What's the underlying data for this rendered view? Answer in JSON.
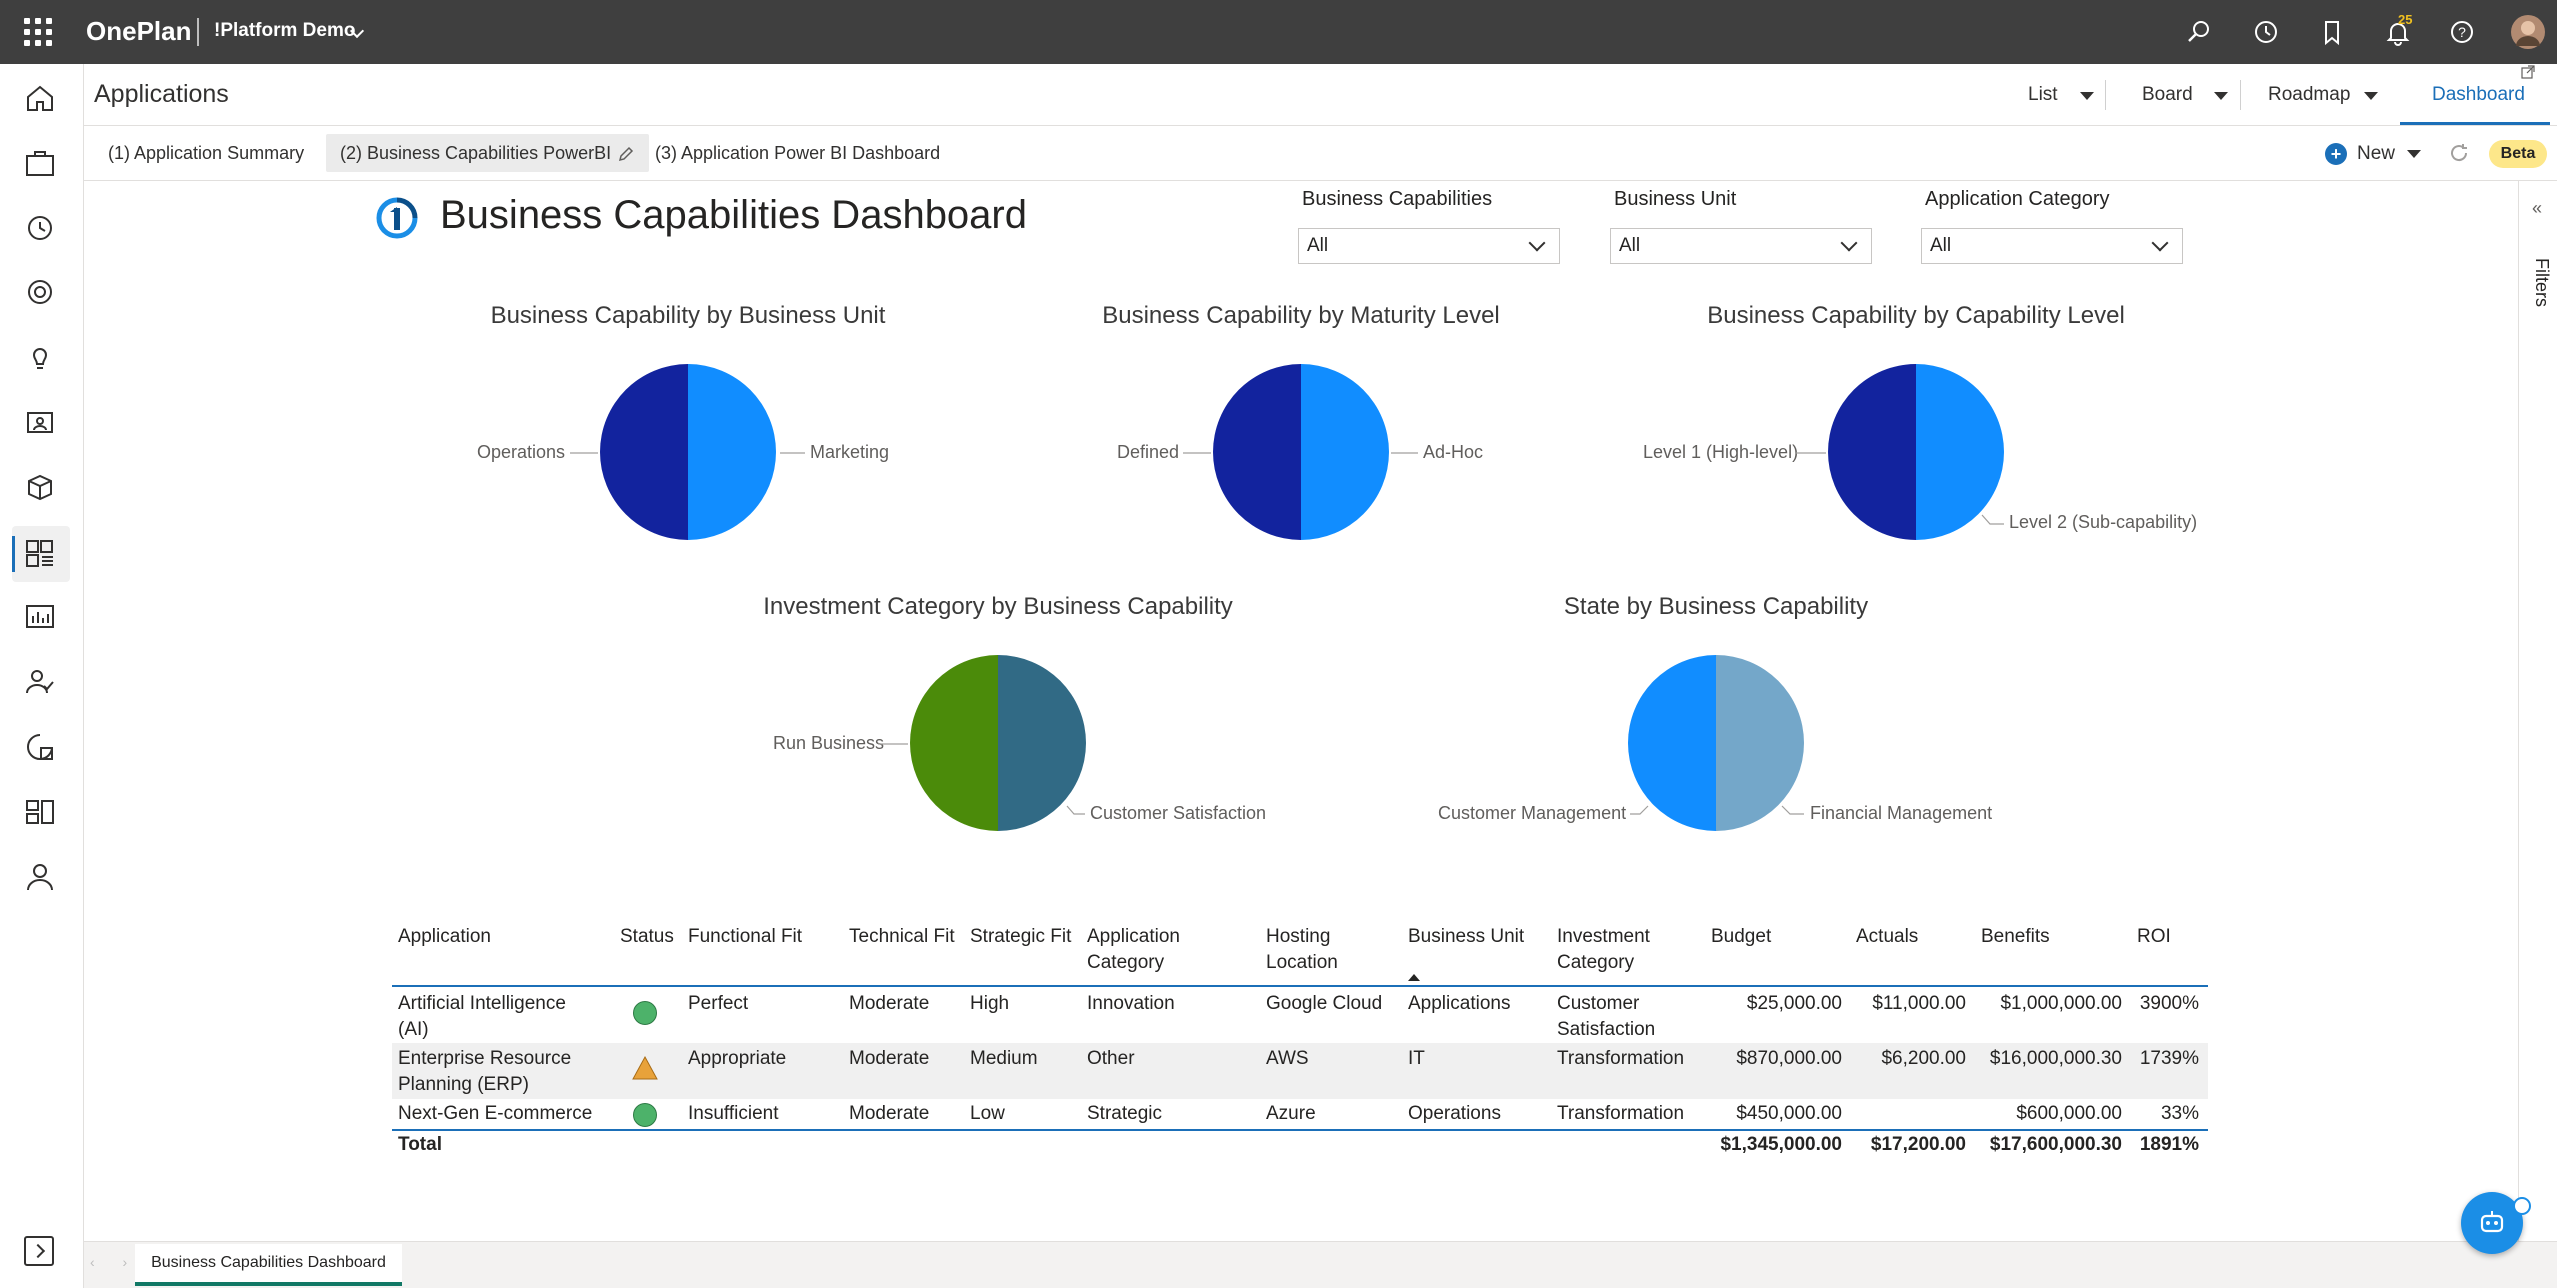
{
  "topbar": {
    "brand": "OnePlan",
    "workspace": "!Platform Demo",
    "notification_count": "25",
    "icons": [
      "search-icon",
      "history-icon",
      "bookmark-icon",
      "bell-icon",
      "help-icon",
      "user-avatar"
    ]
  },
  "rail": {
    "icons": [
      "home-icon",
      "portfolio-icon",
      "timesheet-icon",
      "goals-icon",
      "ideas-icon",
      "resources-icon",
      "products-icon",
      "applications-icon",
      "reports-icon",
      "people-icon",
      "analytics-icon",
      "boards-icon",
      "profile-icon"
    ],
    "active_index": 7
  },
  "header": {
    "title": "Applications",
    "views": [
      "List",
      "Board",
      "Roadmap",
      "Dashboard"
    ],
    "active_view": "Dashboard"
  },
  "tabs": [
    {
      "label": "(1) Application Summary"
    },
    {
      "label": "(2) Business Capabilities PowerBI"
    },
    {
      "label": "(3) Application Power BI Dashboard"
    }
  ],
  "toolbar": {
    "new_label": "New",
    "beta_label": "Beta"
  },
  "report": {
    "title": "Business Capabilities Dashboard",
    "filters_label": "Filters",
    "slicers": [
      {
        "label": "Business Capabilities",
        "value": "All"
      },
      {
        "label": "Business Unit",
        "value": "All"
      },
      {
        "label": "Application Category",
        "value": "All"
      }
    ]
  },
  "chart_data": [
    {
      "type": "pie",
      "title": "Business Capability by Business Unit",
      "slices": [
        {
          "label": "Operations",
          "value": 50,
          "color": "#12239e"
        },
        {
          "label": "Marketing",
          "value": 50,
          "color": "#118dff"
        }
      ]
    },
    {
      "type": "pie",
      "title": "Business Capability by Maturity Level",
      "slices": [
        {
          "label": "Defined",
          "value": 50,
          "color": "#12239e"
        },
        {
          "label": "Ad-Hoc",
          "value": 50,
          "color": "#118dff"
        }
      ]
    },
    {
      "type": "pie",
      "title": "Business Capability by Capability Level",
      "slices": [
        {
          "label": "Level 1 (High-level)",
          "value": 50,
          "color": "#12239e"
        },
        {
          "label": "Level 2 (Sub-capability)",
          "value": 50,
          "color": "#118dff"
        }
      ]
    },
    {
      "type": "pie",
      "title": "Investment Category by Business Capability",
      "slices": [
        {
          "label": "Run Business",
          "value": 50,
          "color": "#4b8b0a"
        },
        {
          "label": "Customer Satisfaction",
          "value": 50,
          "color": "#316a85"
        }
      ]
    },
    {
      "type": "pie",
      "title": "State by Business Capability",
      "slices": [
        {
          "label": "Customer Management",
          "value": 50,
          "color": "#118dff"
        },
        {
          "label": "Financial Management",
          "value": 50,
          "color": "#74a7c9"
        }
      ]
    }
  ],
  "table": {
    "columns": [
      "Application",
      "Status",
      "Functional Fit",
      "Technical Fit",
      "Strategic Fit",
      "Application Category",
      "Hosting Location",
      "Business Unit",
      "Investment Category",
      "Budget",
      "Actuals",
      "Benefits",
      "ROI"
    ],
    "rows": [
      {
        "Application": "Artificial Intelligence (AI)",
        "Status": "green-circle",
        "Functional Fit": "Perfect",
        "Technical Fit": "Moderate",
        "Strategic Fit": "High",
        "Application Category": "Innovation",
        "Hosting Location": "Google Cloud",
        "Business Unit": "Applications",
        "Investment Category": "Customer Satisfaction",
        "Budget": "$25,000.00",
        "Actuals": "$11,000.00",
        "Benefits": "$1,000,000.00",
        "ROI": "3900%"
      },
      {
        "Application": "Enterprise Resource Planning (ERP)",
        "Status": "warning-triangle",
        "Functional Fit": "Appropriate",
        "Technical Fit": "Moderate",
        "Strategic Fit": "Medium",
        "Application Category": "Other",
        "Hosting Location": "AWS",
        "Business Unit": "IT",
        "Investment Category": "Transformation",
        "Budget": "$870,000.00",
        "Actuals": "$6,200.00",
        "Benefits": "$16,000,000.30",
        "ROI": "1739%"
      },
      {
        "Application": "Next-Gen E-commerce",
        "Status": "green-circle",
        "Functional Fit": "Insufficient",
        "Technical Fit": "Moderate",
        "Strategic Fit": "Low",
        "Application Category": "Strategic",
        "Hosting Location": "Azure",
        "Business Unit": "Operations",
        "Investment Category": "Transformation",
        "Budget": "$450,000.00",
        "Actuals": "",
        "Benefits": "$600,000.00",
        "ROI": "33%"
      }
    ],
    "total": {
      "label": "Total",
      "Budget": "$1,345,000.00",
      "Actuals": "$17,200.00",
      "Benefits": "$17,600,000.30",
      "ROI": "1891%"
    }
  },
  "bottom": {
    "page_tab": "Business Capabilities Dashboard"
  }
}
